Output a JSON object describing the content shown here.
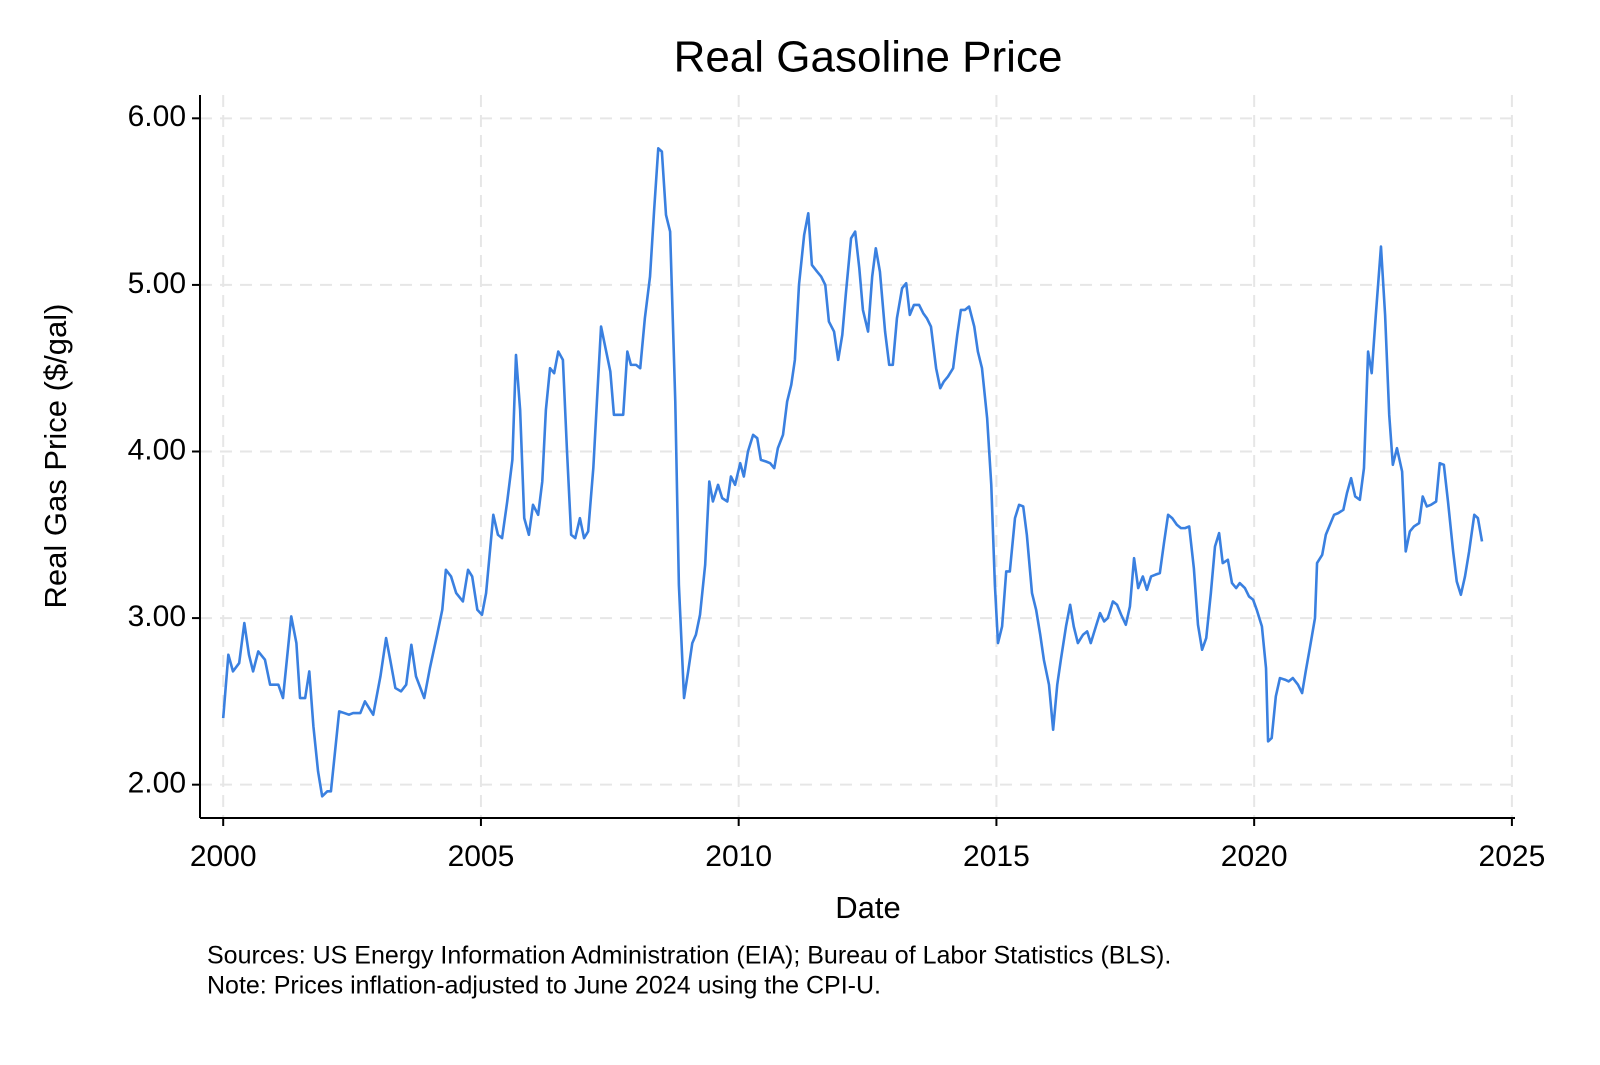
{
  "chart_data": {
    "type": "line",
    "title": "Real Gasoline Price",
    "x_label": "Date",
    "y_label": "Real Gas Price ($/gal)",
    "annotations": [
      "Sources: US Energy Information Administration (EIA); Bureau of Labor Statistics (BLS).",
      "Note: Prices inflation-adjusted to June 2024 using the CPI-U."
    ],
    "xlim": [
      1999.55,
      2025.06
    ],
    "ylim": [
      1.8,
      6.14
    ],
    "xticks": [
      2000,
      2005,
      2010,
      2015,
      2020,
      2025
    ],
    "yticks": [
      {
        "value": 2,
        "label": "2.00"
      },
      {
        "value": 3,
        "label": "3.00"
      },
      {
        "value": 4,
        "label": "4.00"
      },
      {
        "value": 5,
        "label": "5.00"
      },
      {
        "value": 6,
        "label": "6.00"
      }
    ],
    "grid": true,
    "x": [
      2000.0,
      2000.1,
      2000.19,
      2000.31,
      2000.41,
      2000.5,
      2000.58,
      2000.68,
      2000.81,
      2000.91,
      2001.07,
      2001.16,
      2001.32,
      2001.42,
      2001.49,
      2001.59,
      2001.67,
      2001.75,
      2001.84,
      2001.92,
      2002.02,
      2002.09,
      2002.25,
      2002.35,
      2002.44,
      2002.52,
      2002.66,
      2002.75,
      2002.91,
      2003.05,
      2003.16,
      2003.24,
      2003.34,
      2003.45,
      2003.55,
      2003.65,
      2003.74,
      2003.9,
      2004.01,
      2004.15,
      2004.25,
      2004.32,
      2004.42,
      2004.52,
      2004.65,
      2004.75,
      2004.83,
      2004.93,
      2005.02,
      2005.1,
      2005.24,
      2005.33,
      2005.41,
      2005.51,
      2005.61,
      2005.68,
      2005.76,
      2005.84,
      2005.93,
      2006.01,
      2006.11,
      2006.19,
      2006.26,
      2006.34,
      2006.42,
      2006.5,
      2006.59,
      2006.67,
      2006.75,
      2006.83,
      2006.92,
      2007.0,
      2007.08,
      2007.18,
      2007.25,
      2007.33,
      2007.43,
      2007.51,
      2007.58,
      2007.66,
      2007.76,
      2007.84,
      2007.91,
      2008.01,
      2008.09,
      2008.18,
      2008.28,
      2008.36,
      2008.44,
      2008.51,
      2008.59,
      2008.67,
      2008.77,
      2008.84,
      2008.94,
      2009.02,
      2009.1,
      2009.17,
      2009.25,
      2009.35,
      2009.43,
      2009.5,
      2009.6,
      2009.68,
      2009.78,
      2009.85,
      2009.93,
      2010.03,
      2010.1,
      2010.18,
      2010.28,
      2010.36,
      2010.43,
      2010.53,
      2010.61,
      2010.69,
      2010.76,
      2010.86,
      2010.94,
      2011.02,
      2011.09,
      2011.17,
      2011.27,
      2011.35,
      2011.42,
      2011.52,
      2011.6,
      2011.68,
      2011.75,
      2011.85,
      2011.93,
      2012.01,
      2012.08,
      2012.18,
      2012.26,
      2012.34,
      2012.41,
      2012.51,
      2012.59,
      2012.66,
      2012.74,
      2012.84,
      2012.92,
      2012.99,
      2013.07,
      2013.17,
      2013.25,
      2013.32,
      2013.4,
      2013.5,
      2013.58,
      2013.65,
      2013.73,
      2013.83,
      2013.91,
      2013.98,
      2014.06,
      2014.16,
      2014.24,
      2014.31,
      2014.39,
      2014.47,
      2014.57,
      2014.64,
      2014.72,
      2014.82,
      2014.9,
      2014.97,
      2015.03,
      2015.11,
      2015.19,
      2015.26,
      2015.36,
      2015.44,
      2015.52,
      2015.59,
      2015.69,
      2015.77,
      2015.85,
      2015.92,
      2016.02,
      2016.1,
      2016.18,
      2016.25,
      2016.35,
      2016.43,
      2016.5,
      2016.58,
      2016.68,
      2016.76,
      2016.83,
      2016.93,
      2017.01,
      2017.09,
      2017.16,
      2017.26,
      2017.34,
      2017.42,
      2017.51,
      2017.59,
      2017.67,
      2017.75,
      2017.84,
      2017.92,
      2018.0,
      2018.08,
      2018.17,
      2018.25,
      2018.33,
      2018.41,
      2018.5,
      2018.58,
      2018.66,
      2018.74,
      2018.83,
      2018.91,
      2018.99,
      2019.07,
      2019.16,
      2019.24,
      2019.32,
      2019.39,
      2019.49,
      2019.57,
      2019.65,
      2019.72,
      2019.82,
      2019.9,
      2019.98,
      2020.05,
      2020.15,
      2020.23,
      2020.27,
      2020.34,
      2020.42,
      2020.5,
      2020.6,
      2020.67,
      2020.75,
      2020.85,
      2020.93,
      2021.0,
      2021.08,
      2021.18,
      2021.22,
      2021.32,
      2021.39,
      2021.47,
      2021.55,
      2021.63,
      2021.73,
      2021.8,
      2021.88,
      2021.96,
      2022.05,
      2022.13,
      2022.21,
      2022.28,
      2022.36,
      2022.46,
      2022.54,
      2022.62,
      2022.69,
      2022.77,
      2022.87,
      2022.94,
      2023.02,
      2023.1,
      2023.2,
      2023.27,
      2023.35,
      2023.43,
      2023.53,
      2023.6,
      2023.68,
      2023.76,
      2023.86,
      2023.93,
      2024.01,
      2024.09,
      2024.17,
      2024.27,
      2024.34,
      2024.42
    ],
    "series": [
      {
        "name": "Real Gas Price",
        "color": "#3a80e0",
        "values": [
          2.4,
          2.78,
          2.68,
          2.73,
          2.97,
          2.78,
          2.68,
          2.8,
          2.75,
          2.6,
          2.6,
          2.52,
          3.01,
          2.85,
          2.52,
          2.52,
          2.68,
          2.35,
          2.08,
          1.93,
          1.96,
          1.96,
          2.44,
          2.43,
          2.42,
          2.43,
          2.43,
          2.5,
          2.42,
          2.65,
          2.88,
          2.75,
          2.58,
          2.56,
          2.6,
          2.84,
          2.65,
          2.52,
          2.7,
          2.9,
          3.05,
          3.29,
          3.25,
          3.15,
          3.1,
          3.29,
          3.25,
          3.05,
          3.02,
          3.15,
          3.62,
          3.5,
          3.48,
          3.7,
          3.95,
          4.58,
          4.25,
          3.6,
          3.5,
          3.68,
          3.62,
          3.82,
          4.25,
          4.5,
          4.47,
          4.6,
          4.55,
          4.0,
          3.5,
          3.48,
          3.6,
          3.48,
          3.52,
          3.9,
          4.3,
          4.75,
          4.6,
          4.48,
          4.22,
          4.22,
          4.22,
          4.6,
          4.52,
          4.52,
          4.5,
          4.8,
          5.05,
          5.45,
          5.82,
          5.8,
          5.42,
          5.32,
          4.3,
          3.2,
          2.52,
          2.68,
          2.85,
          2.9,
          3.02,
          3.32,
          3.82,
          3.7,
          3.8,
          3.72,
          3.7,
          3.85,
          3.8,
          3.93,
          3.85,
          4.0,
          4.1,
          4.08,
          3.95,
          3.94,
          3.93,
          3.9,
          4.02,
          4.1,
          4.3,
          4.4,
          4.55,
          5.0,
          5.3,
          5.43,
          5.12,
          5.08,
          5.05,
          5.0,
          4.78,
          4.72,
          4.55,
          4.7,
          4.95,
          5.28,
          5.32,
          5.1,
          4.85,
          4.72,
          5.05,
          5.22,
          5.08,
          4.72,
          4.52,
          4.52,
          4.8,
          4.98,
          5.01,
          4.82,
          4.88,
          4.88,
          4.83,
          4.8,
          4.75,
          4.5,
          4.38,
          4.42,
          4.45,
          4.5,
          4.7,
          4.85,
          4.85,
          4.87,
          4.75,
          4.6,
          4.5,
          4.2,
          3.8,
          3.2,
          2.85,
          2.95,
          3.28,
          3.28,
          3.6,
          3.68,
          3.67,
          3.5,
          3.15,
          3.05,
          2.9,
          2.75,
          2.6,
          2.33,
          2.6,
          2.75,
          2.95,
          3.08,
          2.95,
          2.85,
          2.9,
          2.92,
          2.85,
          2.95,
          3.03,
          2.98,
          3.0,
          3.1,
          3.08,
          3.02,
          2.96,
          3.07,
          3.36,
          3.18,
          3.25,
          3.17,
          3.25,
          3.26,
          3.27,
          3.45,
          3.62,
          3.6,
          3.56,
          3.54,
          3.54,
          3.55,
          3.3,
          2.96,
          2.81,
          2.88,
          3.15,
          3.43,
          3.51,
          3.33,
          3.35,
          3.21,
          3.18,
          3.21,
          3.18,
          3.13,
          3.11,
          3.05,
          2.95,
          2.7,
          2.26,
          2.28,
          2.53,
          2.64,
          2.63,
          2.62,
          2.64,
          2.6,
          2.55,
          2.68,
          2.82,
          3.0,
          3.33,
          3.38,
          3.5,
          3.56,
          3.62,
          3.63,
          3.65,
          3.75,
          3.84,
          3.73,
          3.71,
          3.9,
          4.6,
          4.47,
          4.82,
          5.23,
          4.82,
          4.22,
          3.92,
          4.02,
          3.88,
          3.4,
          3.52,
          3.55,
          3.57,
          3.73,
          3.67,
          3.68,
          3.7,
          3.93,
          3.92,
          3.7,
          3.4,
          3.22,
          3.14,
          3.25,
          3.4,
          3.62,
          3.6,
          3.46
        ]
      }
    ]
  }
}
